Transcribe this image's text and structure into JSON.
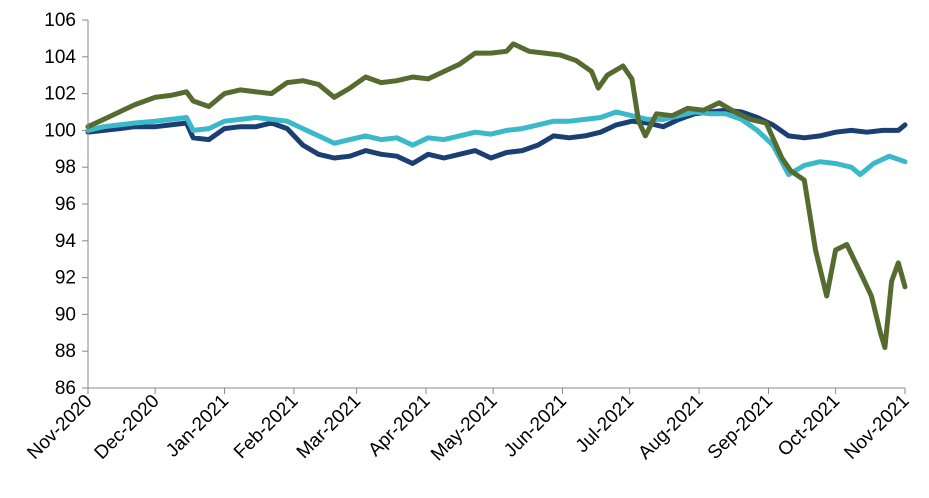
{
  "chart_data": {
    "type": "line",
    "title": "",
    "xlabel": "",
    "ylabel": "",
    "ylim": [
      86,
      106
    ],
    "y_ticks": [
      86,
      88,
      90,
      92,
      94,
      96,
      98,
      100,
      102,
      104,
      106
    ],
    "x_ticks": [
      "Nov-2020",
      "Dec-2020",
      "Jan-2021",
      "Feb-2021",
      "Mar-2021",
      "Apr-2021",
      "May-2021",
      "Jun-2021",
      "Jul-2021",
      "Aug-2021",
      "Sep-2021",
      "Oct-2021",
      "Nov-2021"
    ],
    "grid": false,
    "legend": "none",
    "series": [
      {
        "color": "#1b3f73",
        "points": [
          [
            "2020-11-01",
            99.9
          ],
          [
            "2020-11-08",
            100.0
          ],
          [
            "2020-11-15",
            100.1
          ],
          [
            "2020-11-22",
            100.2
          ],
          [
            "2020-12-01",
            100.2
          ],
          [
            "2020-12-08",
            100.3
          ],
          [
            "2020-12-15",
            100.4
          ],
          [
            "2020-12-18",
            99.6
          ],
          [
            "2020-12-25",
            99.5
          ],
          [
            "2021-01-01",
            100.1
          ],
          [
            "2021-01-08",
            100.2
          ],
          [
            "2021-01-15",
            100.2
          ],
          [
            "2021-01-22",
            100.4
          ],
          [
            "2021-01-29",
            100.1
          ],
          [
            "2021-02-05",
            99.2
          ],
          [
            "2021-02-12",
            98.7
          ],
          [
            "2021-02-19",
            98.5
          ],
          [
            "2021-02-26",
            98.6
          ],
          [
            "2021-03-05",
            98.9
          ],
          [
            "2021-03-12",
            98.7
          ],
          [
            "2021-03-19",
            98.6
          ],
          [
            "2021-03-26",
            98.2
          ],
          [
            "2021-04-02",
            98.7
          ],
          [
            "2021-04-09",
            98.5
          ],
          [
            "2021-04-16",
            98.7
          ],
          [
            "2021-04-23",
            98.9
          ],
          [
            "2021-04-30",
            98.5
          ],
          [
            "2021-05-07",
            98.8
          ],
          [
            "2021-05-14",
            98.9
          ],
          [
            "2021-05-21",
            99.2
          ],
          [
            "2021-05-28",
            99.7
          ],
          [
            "2021-06-04",
            99.6
          ],
          [
            "2021-06-11",
            99.7
          ],
          [
            "2021-06-18",
            99.9
          ],
          [
            "2021-06-25",
            100.3
          ],
          [
            "2021-07-02",
            100.5
          ],
          [
            "2021-07-09",
            100.4
          ],
          [
            "2021-07-16",
            100.2
          ],
          [
            "2021-07-23",
            100.6
          ],
          [
            "2021-07-30",
            100.9
          ],
          [
            "2021-08-06",
            101.0
          ],
          [
            "2021-08-13",
            101.1
          ],
          [
            "2021-08-20",
            101.0
          ],
          [
            "2021-08-27",
            100.7
          ],
          [
            "2021-09-03",
            100.3
          ],
          [
            "2021-09-10",
            99.7
          ],
          [
            "2021-09-17",
            99.6
          ],
          [
            "2021-09-24",
            99.7
          ],
          [
            "2021-10-01",
            99.9
          ],
          [
            "2021-10-08",
            100.0
          ],
          [
            "2021-10-15",
            99.9
          ],
          [
            "2021-10-22",
            100.0
          ],
          [
            "2021-10-29",
            100.0
          ],
          [
            "2021-11-01",
            100.3
          ]
        ]
      },
      {
        "color": "#3bb8c9",
        "points": [
          [
            "2020-11-01",
            100.0
          ],
          [
            "2020-11-08",
            100.2
          ],
          [
            "2020-11-15",
            100.3
          ],
          [
            "2020-11-22",
            100.4
          ],
          [
            "2020-12-01",
            100.5
          ],
          [
            "2020-12-08",
            100.6
          ],
          [
            "2020-12-15",
            100.7
          ],
          [
            "2020-12-18",
            100.0
          ],
          [
            "2020-12-25",
            100.1
          ],
          [
            "2021-01-01",
            100.5
          ],
          [
            "2021-01-08",
            100.6
          ],
          [
            "2021-01-15",
            100.7
          ],
          [
            "2021-01-22",
            100.6
          ],
          [
            "2021-01-29",
            100.5
          ],
          [
            "2021-02-05",
            100.1
          ],
          [
            "2021-02-12",
            99.7
          ],
          [
            "2021-02-19",
            99.3
          ],
          [
            "2021-02-26",
            99.5
          ],
          [
            "2021-03-05",
            99.7
          ],
          [
            "2021-03-12",
            99.5
          ],
          [
            "2021-03-19",
            99.6
          ],
          [
            "2021-03-26",
            99.2
          ],
          [
            "2021-04-02",
            99.6
          ],
          [
            "2021-04-09",
            99.5
          ],
          [
            "2021-04-16",
            99.7
          ],
          [
            "2021-04-23",
            99.9
          ],
          [
            "2021-04-30",
            99.8
          ],
          [
            "2021-05-07",
            100.0
          ],
          [
            "2021-05-14",
            100.1
          ],
          [
            "2021-05-21",
            100.3
          ],
          [
            "2021-05-28",
            100.5
          ],
          [
            "2021-06-04",
            100.5
          ],
          [
            "2021-06-11",
            100.6
          ],
          [
            "2021-06-18",
            100.7
          ],
          [
            "2021-06-25",
            101.0
          ],
          [
            "2021-07-02",
            100.8
          ],
          [
            "2021-07-09",
            100.6
          ],
          [
            "2021-07-16",
            100.6
          ],
          [
            "2021-07-23",
            100.8
          ],
          [
            "2021-07-30",
            101.0
          ],
          [
            "2021-08-06",
            100.9
          ],
          [
            "2021-08-13",
            100.9
          ],
          [
            "2021-08-20",
            100.6
          ],
          [
            "2021-08-27",
            100.0
          ],
          [
            "2021-09-03",
            99.2
          ],
          [
            "2021-09-10",
            97.6
          ],
          [
            "2021-09-17",
            98.1
          ],
          [
            "2021-09-24",
            98.3
          ],
          [
            "2021-10-01",
            98.2
          ],
          [
            "2021-10-08",
            98.0
          ],
          [
            "2021-10-12",
            97.6
          ],
          [
            "2021-10-18",
            98.2
          ],
          [
            "2021-10-25",
            98.6
          ],
          [
            "2021-11-01",
            98.3
          ]
        ]
      },
      {
        "color": "#556b2f",
        "points": [
          [
            "2020-11-01",
            100.2
          ],
          [
            "2020-11-08",
            100.6
          ],
          [
            "2020-11-15",
            101.0
          ],
          [
            "2020-11-22",
            101.4
          ],
          [
            "2020-12-01",
            101.8
          ],
          [
            "2020-12-08",
            101.9
          ],
          [
            "2020-12-15",
            102.1
          ],
          [
            "2020-12-18",
            101.6
          ],
          [
            "2020-12-25",
            101.3
          ],
          [
            "2021-01-01",
            102.0
          ],
          [
            "2021-01-08",
            102.2
          ],
          [
            "2021-01-15",
            102.1
          ],
          [
            "2021-01-22",
            102.0
          ],
          [
            "2021-01-29",
            102.6
          ],
          [
            "2021-02-05",
            102.7
          ],
          [
            "2021-02-12",
            102.5
          ],
          [
            "2021-02-19",
            101.8
          ],
          [
            "2021-02-26",
            102.3
          ],
          [
            "2021-03-05",
            102.9
          ],
          [
            "2021-03-12",
            102.6
          ],
          [
            "2021-03-19",
            102.7
          ],
          [
            "2021-03-26",
            102.9
          ],
          [
            "2021-04-02",
            102.8
          ],
          [
            "2021-04-09",
            103.2
          ],
          [
            "2021-04-16",
            103.6
          ],
          [
            "2021-04-23",
            104.2
          ],
          [
            "2021-04-30",
            104.2
          ],
          [
            "2021-05-07",
            104.3
          ],
          [
            "2021-05-10",
            104.7
          ],
          [
            "2021-05-17",
            104.3
          ],
          [
            "2021-05-24",
            104.2
          ],
          [
            "2021-05-31",
            104.1
          ],
          [
            "2021-06-07",
            103.8
          ],
          [
            "2021-06-14",
            103.2
          ],
          [
            "2021-06-17",
            102.3
          ],
          [
            "2021-06-21",
            103.0
          ],
          [
            "2021-06-28",
            103.5
          ],
          [
            "2021-07-02",
            102.8
          ],
          [
            "2021-07-05",
            100.5
          ],
          [
            "2021-07-08",
            99.7
          ],
          [
            "2021-07-13",
            100.9
          ],
          [
            "2021-07-20",
            100.8
          ],
          [
            "2021-07-27",
            101.2
          ],
          [
            "2021-08-03",
            101.1
          ],
          [
            "2021-08-10",
            101.5
          ],
          [
            "2021-08-17",
            101.0
          ],
          [
            "2021-08-24",
            100.6
          ],
          [
            "2021-08-31",
            100.4
          ],
          [
            "2021-09-07",
            98.5
          ],
          [
            "2021-09-11",
            97.8
          ],
          [
            "2021-09-17",
            97.3
          ],
          [
            "2021-09-22",
            93.5
          ],
          [
            "2021-09-27",
            91.0
          ],
          [
            "2021-10-01",
            93.5
          ],
          [
            "2021-10-06",
            93.8
          ],
          [
            "2021-10-12",
            92.3
          ],
          [
            "2021-10-17",
            91.0
          ],
          [
            "2021-10-21",
            89.0
          ],
          [
            "2021-10-23",
            88.2
          ],
          [
            "2021-10-26",
            91.8
          ],
          [
            "2021-10-29",
            92.8
          ],
          [
            "2021-11-01",
            91.5
          ]
        ]
      }
    ]
  }
}
